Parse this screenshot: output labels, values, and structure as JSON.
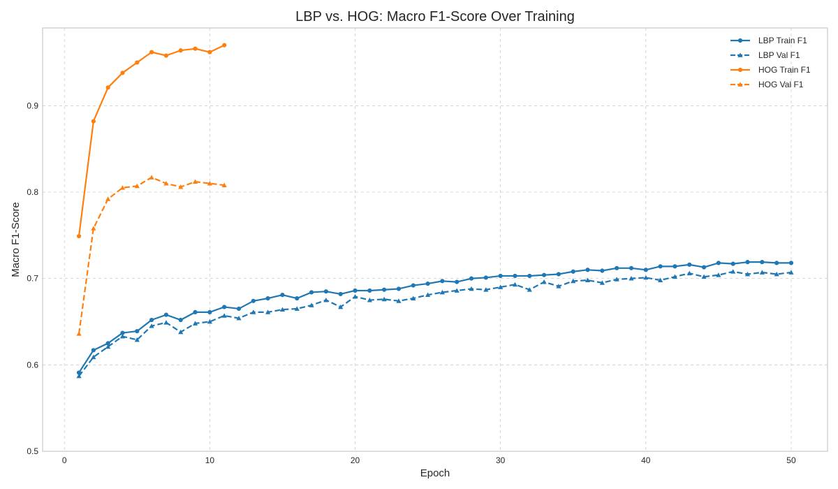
{
  "chart_data": {
    "type": "line",
    "title": "LBP vs. HOG: Macro F1-Score Over Training",
    "xlabel": "Epoch",
    "ylabel": "Macro F1-Score",
    "xlim": [
      -1.5,
      52.5
    ],
    "ylim": [
      0.5,
      0.99
    ],
    "xticks": [
      0,
      10,
      20,
      30,
      40,
      50
    ],
    "yticks": [
      0.5,
      0.6,
      0.7,
      0.8,
      0.9
    ],
    "grid": true,
    "legend_position": "top-right",
    "series": [
      {
        "name": "LBP Train F1",
        "color": "#1f77b4",
        "linestyle": "solid",
        "marker": "circle",
        "x": [
          1,
          2,
          3,
          4,
          5,
          6,
          7,
          8,
          9,
          10,
          11,
          12,
          13,
          14,
          15,
          16,
          17,
          18,
          19,
          20,
          21,
          22,
          23,
          24,
          25,
          26,
          27,
          28,
          29,
          30,
          31,
          32,
          33,
          34,
          35,
          36,
          37,
          38,
          39,
          40,
          41,
          42,
          43,
          44,
          45,
          46,
          47,
          48,
          49,
          50
        ],
        "values": [
          0.591,
          0.617,
          0.625,
          0.637,
          0.639,
          0.652,
          0.658,
          0.652,
          0.661,
          0.661,
          0.667,
          0.665,
          0.674,
          0.677,
          0.681,
          0.677,
          0.684,
          0.685,
          0.682,
          0.686,
          0.686,
          0.687,
          0.688,
          0.692,
          0.694,
          0.697,
          0.696,
          0.7,
          0.701,
          0.703,
          0.703,
          0.703,
          0.704,
          0.705,
          0.708,
          0.71,
          0.709,
          0.712,
          0.712,
          0.71,
          0.714,
          0.714,
          0.716,
          0.713,
          0.718,
          0.717,
          0.719,
          0.719,
          0.718,
          0.718
        ]
      },
      {
        "name": "LBP Val F1",
        "color": "#1f77b4",
        "linestyle": "dashed",
        "marker": "triangle",
        "x": [
          1,
          2,
          3,
          4,
          5,
          6,
          7,
          8,
          9,
          10,
          11,
          12,
          13,
          14,
          15,
          16,
          17,
          18,
          19,
          20,
          21,
          22,
          23,
          24,
          25,
          26,
          27,
          28,
          29,
          30,
          31,
          32,
          33,
          34,
          35,
          36,
          37,
          38,
          39,
          40,
          41,
          42,
          43,
          44,
          45,
          46,
          47,
          48,
          49,
          50
        ],
        "values": [
          0.587,
          0.609,
          0.621,
          0.633,
          0.629,
          0.645,
          0.649,
          0.638,
          0.648,
          0.65,
          0.657,
          0.654,
          0.661,
          0.661,
          0.664,
          0.665,
          0.669,
          0.675,
          0.667,
          0.679,
          0.675,
          0.676,
          0.674,
          0.677,
          0.681,
          0.684,
          0.686,
          0.688,
          0.687,
          0.69,
          0.693,
          0.687,
          0.696,
          0.691,
          0.697,
          0.698,
          0.695,
          0.699,
          0.7,
          0.701,
          0.698,
          0.702,
          0.706,
          0.702,
          0.704,
          0.708,
          0.705,
          0.707,
          0.705,
          0.707
        ]
      },
      {
        "name": "HOG Train F1",
        "color": "#ff7f0e",
        "linestyle": "solid",
        "marker": "circle",
        "x": [
          1,
          2,
          3,
          4,
          5,
          6,
          7,
          8,
          9,
          10,
          11
        ],
        "values": [
          0.749,
          0.882,
          0.921,
          0.938,
          0.95,
          0.962,
          0.958,
          0.964,
          0.966,
          0.962,
          0.97
        ]
      },
      {
        "name": "HOG Val F1",
        "color": "#ff7f0e",
        "linestyle": "dashed",
        "marker": "triangle",
        "x": [
          1,
          2,
          3,
          4,
          5,
          6,
          7,
          8,
          9,
          10,
          11
        ],
        "values": [
          0.636,
          0.758,
          0.792,
          0.805,
          0.807,
          0.817,
          0.81,
          0.806,
          0.812,
          0.81,
          0.808
        ]
      }
    ]
  }
}
